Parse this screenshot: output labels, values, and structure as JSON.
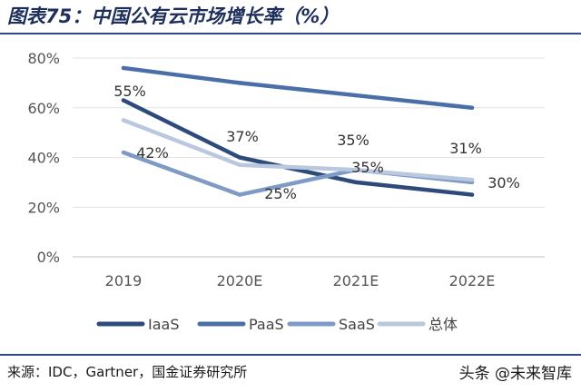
{
  "header": {
    "title": "图表75：中国公有云市场增长率（%）"
  },
  "footer": {
    "source": "来源：IDC，Gartner，国金证券研究所",
    "watermark": "头条 @未来智库"
  },
  "chart_data": {
    "type": "line",
    "title": "图表75：中国公有云市场增长率（%）",
    "categories": [
      "2019",
      "2020E",
      "2021E",
      "2022E"
    ],
    "ylim": [
      0,
      80
    ],
    "yticks": [
      "0%",
      "20%",
      "40%",
      "60%",
      "80%"
    ],
    "grid": "horizontal",
    "legend": "bottom",
    "series": [
      {
        "name": "IaaS",
        "values": [
          63,
          40,
          30,
          25
        ],
        "color": "#2e4a7a",
        "labels": []
      },
      {
        "name": "PaaS",
        "values": [
          76,
          70,
          65,
          60
        ],
        "color": "#4a6fa8",
        "labels": []
      },
      {
        "name": "SaaS",
        "values": [
          42,
          25,
          35,
          30
        ],
        "color": "#7f9ac4",
        "labels": [
          "42%",
          "25%",
          "35%",
          "30%"
        ]
      },
      {
        "name": "总体",
        "values": [
          55,
          37,
          35,
          31
        ],
        "color": "#b9c7df",
        "labels": [
          "55%",
          "37%",
          "35%",
          "31%"
        ]
      }
    ]
  }
}
